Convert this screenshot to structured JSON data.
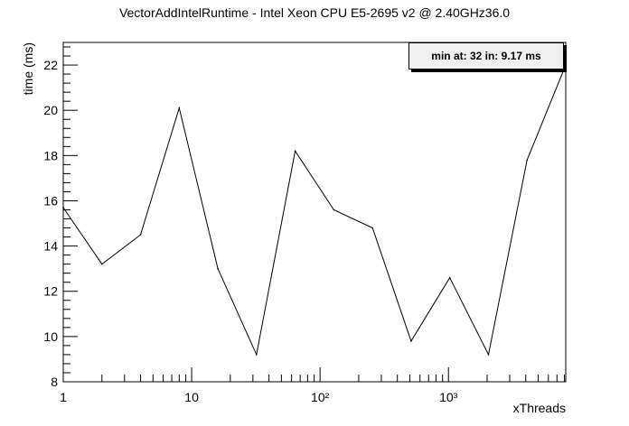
{
  "chart_data": {
    "type": "line",
    "title": "VectorAddIntelRuntime - Intel Xeon CPU E5-2695 v2 @ 2.40GHz36.0",
    "xlabel": "xThreads",
    "ylabel": "time (ms)",
    "x_scale": "log",
    "xlim": [
      1,
      8192
    ],
    "ylim": [
      8,
      23
    ],
    "x_tick_labels": [
      "1",
      "10",
      "10²",
      "10³"
    ],
    "y_ticks": [
      8,
      10,
      12,
      14,
      16,
      18,
      20,
      22
    ],
    "series": [
      {
        "x": [
          1,
          2,
          4,
          8,
          16,
          32,
          64,
          128,
          256,
          512,
          1024,
          2048,
          4096,
          8192
        ],
        "values": [
          15.7,
          13.2,
          14.5,
          20.1,
          13.0,
          9.2,
          18.2,
          15.6,
          14.8,
          9.8,
          12.6,
          9.2,
          17.8,
          22.0
        ]
      }
    ],
    "legend_text": "min at: 32 in: 9.17 ms",
    "legend_position": "top-right",
    "grid": false
  }
}
